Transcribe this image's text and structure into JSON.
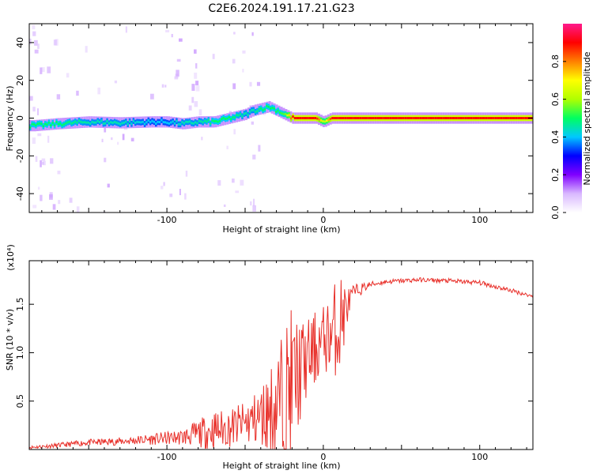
{
  "title": "C2E6.2024.191.17.21.G23",
  "chart_data": [
    {
      "type": "heatmap",
      "panel": "spectrogram",
      "xlabel": "Height of straight line (km)",
      "ylabel": "Frequency (Hz)",
      "xlim": [
        -188,
        134
      ],
      "ylim": [
        -50,
        50
      ],
      "x_ticks": [
        -100,
        0,
        100
      ],
      "y_ticks": [
        -40,
        -20,
        0,
        20,
        40
      ],
      "colorbar": {
        "label": "Normalized spectral amplitude",
        "ticks": [
          "0.0",
          "0.2",
          "0.4",
          "0.6",
          "0.8"
        ],
        "range": [
          0,
          1
        ],
        "colormap": [
          "#ffffff",
          "#d9b8ff",
          "#8000ff",
          "#0000ff",
          "#00c8ff",
          "#00ff60",
          "#b0ff00",
          "#ffff00",
          "#ff8000",
          "#ff0000",
          "#ff1a8c"
        ]
      },
      "ridge": {
        "x": [
          -185,
          -170,
          -150,
          -130,
          -110,
          -100,
          -90,
          -80,
          -70,
          -60,
          -50,
          -45,
          -40,
          -35,
          -30,
          -25,
          -20,
          -15,
          -10,
          -5,
          0,
          5,
          10,
          20,
          40,
          60,
          80,
          100,
          120,
          134
        ],
        "y": [
          -4,
          -3,
          -2,
          -2.5,
          -2,
          -2,
          -3,
          -2,
          -2,
          0,
          2,
          4,
          5,
          6,
          4,
          2,
          0,
          0,
          0,
          0,
          -2,
          0,
          0,
          0,
          0,
          0,
          0,
          0,
          0,
          0
        ],
        "amplitude": [
          0.5,
          0.5,
          0.45,
          0.45,
          0.4,
          0.4,
          0.45,
          0.45,
          0.5,
          0.5,
          0.45,
          0.45,
          0.5,
          0.5,
          0.5,
          0.55,
          0.9,
          0.9,
          0.9,
          0.9,
          0.6,
          0.9,
          0.9,
          0.9,
          0.9,
          0.9,
          0.9,
          0.9,
          0.9,
          0.9
        ]
      }
    },
    {
      "type": "line",
      "panel": "snr",
      "xlabel": "Height of straight line (km)",
      "ylabel": "SNR (10 * v/v)",
      "y_scale_label": "(x10⁴)",
      "xlim": [
        -188,
        134
      ],
      "ylim": [
        0,
        1.95
      ],
      "x_ticks": [
        -100,
        0,
        100
      ],
      "y_ticks": [
        0.5,
        1.0,
        1.5
      ],
      "series": [
        {
          "color": "#e8302a",
          "envelope": {
            "x": [
              -188,
              -170,
              -150,
              -130,
              -110,
              -90,
              -80,
              -70,
              -60,
              -50,
              -40,
              -30,
              -25,
              -20,
              -15,
              -10,
              -5,
              0,
              5,
              10,
              12,
              15,
              20,
              30,
              40,
              60,
              80,
              100,
              120,
              134
            ],
            "base": [
              0.02,
              0.04,
              0.07,
              0.08,
              0.1,
              0.12,
              0.15,
              0.18,
              0.2,
              0.25,
              0.3,
              0.4,
              0.5,
              0.6,
              0.75,
              0.9,
              1.0,
              1.1,
              1.15,
              1.25,
              1.3,
              1.45,
              1.62,
              1.7,
              1.73,
              1.75,
              1.74,
              1.72,
              1.64,
              1.58
            ],
            "noise": [
              0.02,
              0.03,
              0.04,
              0.05,
              0.07,
              0.1,
              0.18,
              0.25,
              0.25,
              0.28,
              0.4,
              0.7,
              0.9,
              1.0,
              0.7,
              0.5,
              0.5,
              0.45,
              0.5,
              0.75,
              0.6,
              0.25,
              0.1,
              0.04,
              0.03,
              0.03,
              0.03,
              0.03,
              0.03,
              0.02
            ]
          }
        }
      ]
    }
  ]
}
